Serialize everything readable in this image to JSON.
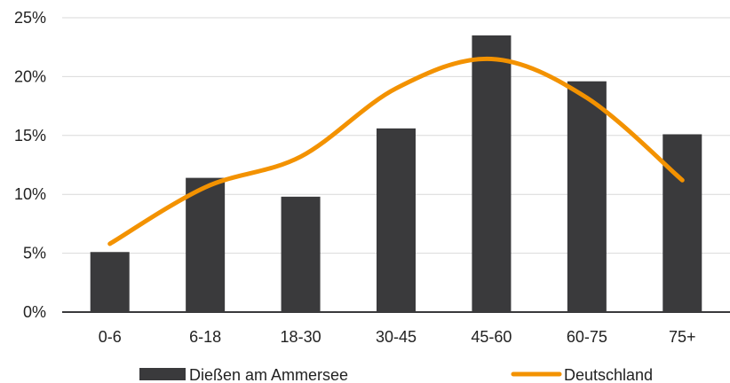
{
  "chart_data": {
    "type": "bar",
    "categories": [
      "0-6",
      "6-18",
      "18-30",
      "30-45",
      "45-60",
      "60-75",
      "75+"
    ],
    "series": [
      {
        "name": "Dießen am Ammersee",
        "kind": "bar",
        "color": "#3a3a3c",
        "values": [
          5.1,
          11.4,
          9.8,
          15.6,
          23.5,
          19.6,
          15.1
        ]
      },
      {
        "name": "Deutschland",
        "kind": "line",
        "color": "#f39200",
        "values": [
          5.8,
          10.6,
          13.2,
          19.0,
          21.5,
          18.2,
          11.2
        ]
      }
    ],
    "ylim": [
      0,
      25
    ],
    "yticks": [
      "0%",
      "5%",
      "10%",
      "15%",
      "20%",
      "25%"
    ],
    "grid": true,
    "legend_position": "bottom"
  },
  "legend": {
    "bar_label": "Dießen am Ammersee",
    "line_label": "Deutschland"
  }
}
